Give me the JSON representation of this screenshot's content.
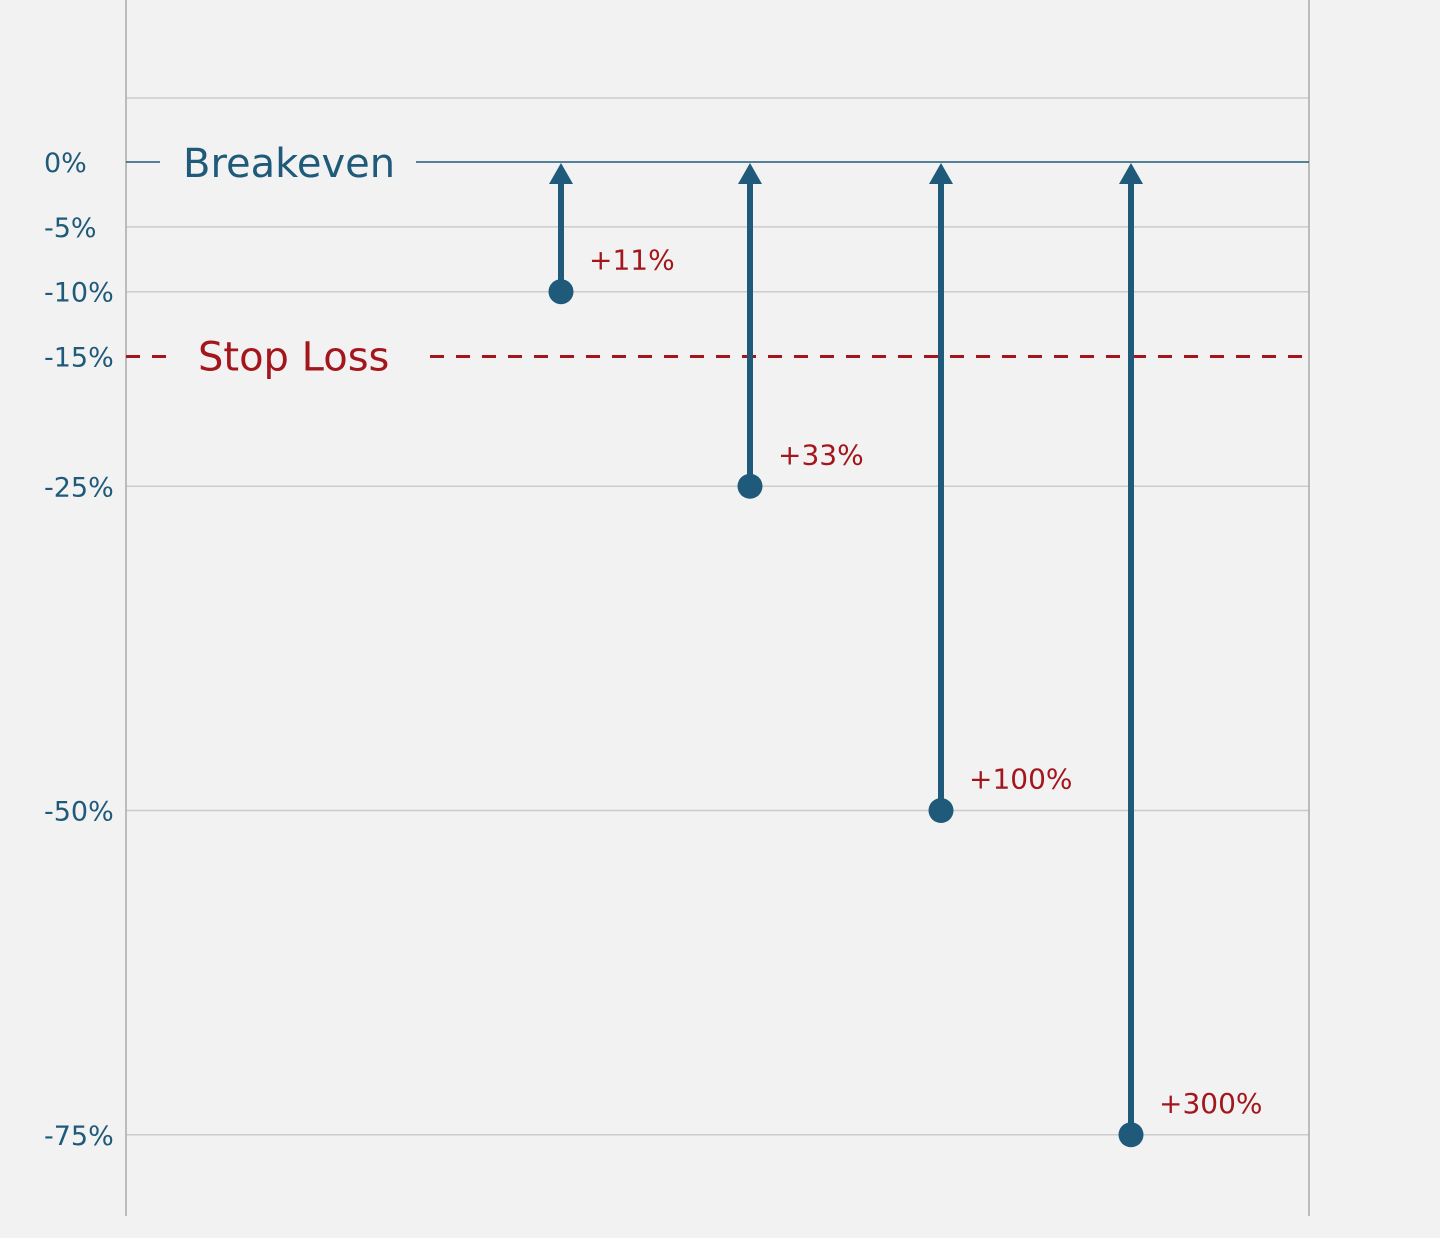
{
  "chart_data": {
    "type": "arrow-range",
    "ylim": [
      -80,
      5
    ],
    "yticks": [
      {
        "value": 0,
        "label": "0%"
      },
      {
        "value": -5,
        "label": "-5%"
      },
      {
        "value": -10,
        "label": "-10%"
      },
      {
        "value": -15,
        "label": "-15%"
      },
      {
        "value": -25,
        "label": "-25%"
      },
      {
        "value": -50,
        "label": "-50%"
      },
      {
        "value": -75,
        "label": "-75%"
      }
    ],
    "breakeven": {
      "value": 0,
      "label": "Breakeven"
    },
    "stop_loss": {
      "value": -15,
      "label": "Stop Loss"
    },
    "points": [
      {
        "loss": -10,
        "gain_label": "+11%"
      },
      {
        "loss": -25,
        "gain_label": "+33%"
      },
      {
        "loss": -50,
        "gain_label": "+100%"
      },
      {
        "loss": -75,
        "gain_label": "+300%"
      }
    ],
    "colors": {
      "primary": "#1f5a7a",
      "stop_loss": "#a3161c",
      "grid": "#cccccc",
      "axis": "#aaaaaa",
      "background": "#f2f2f2"
    }
  }
}
